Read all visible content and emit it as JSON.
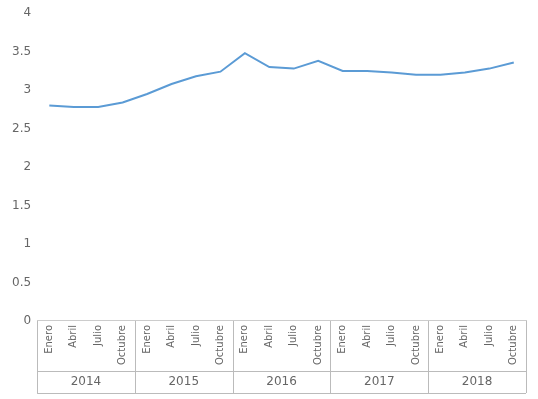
{
  "chart_data": {
    "type": "line",
    "categories": [
      "Enero",
      "Abril",
      "Julio",
      "Octubre",
      "Enero",
      "Abril",
      "Julio",
      "Octubre",
      "Enero",
      "Abril",
      "Julio",
      "Octubre",
      "Enero",
      "Abril",
      "Julio",
      "Octubre",
      "Enero",
      "Abril",
      "Julio",
      "Octubre"
    ],
    "values": [
      2.8,
      2.78,
      2.78,
      2.84,
      2.95,
      3.08,
      3.18,
      3.24,
      3.48,
      3.3,
      3.28,
      3.38,
      3.25,
      3.25,
      3.23,
      3.2,
      3.2,
      3.23,
      3.28,
      3.36
    ],
    "group_labels": [
      "2014",
      "2015",
      "2016",
      "2017",
      "2018"
    ],
    "color": "#5b9bd5",
    "ylim": [
      0,
      4
    ],
    "yticks": [
      0,
      0.5,
      1.0,
      1.5,
      2.0,
      2.5,
      3.0,
      3.5,
      4.0
    ],
    "grid": false
  }
}
